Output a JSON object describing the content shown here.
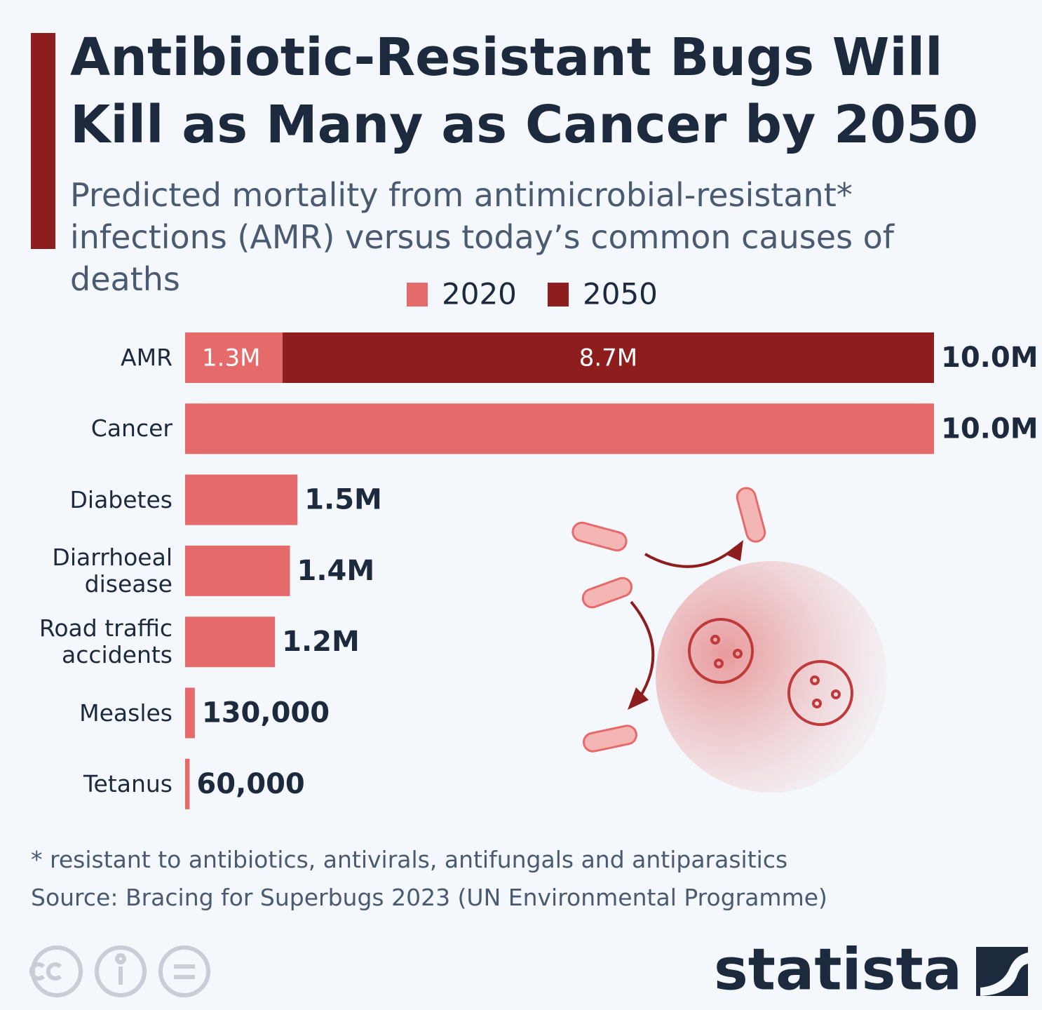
{
  "chart_data": {
    "type": "stacked_bar_horizontal",
    "title": "Antibiotic-Resistant Bugs Will Kill as Many as Cancer by 2050",
    "subtitle": "Predicted mortality from antimicrobial-resistant* infections (AMR) versus today’s common causes of deaths",
    "categories": [
      "AMR",
      "Cancer",
      "Diabetes",
      "Diarrhoeal disease",
      "Road traffic accidents",
      "Measles",
      "Tetanus"
    ],
    "series": [
      {
        "name": "2020",
        "color": "#e56b6a",
        "values": [
          1300000,
          10000000,
          1500000,
          1400000,
          1200000,
          130000,
          60000
        ],
        "value_labels": [
          "1.3M",
          null,
          null,
          null,
          null,
          null,
          null
        ]
      },
      {
        "name": "2050",
        "color": "#8e1e1e",
        "values": [
          8700000,
          null,
          null,
          null,
          null,
          null,
          null
        ],
        "value_labels": [
          "8.7M",
          null,
          null,
          null,
          null,
          null,
          null
        ]
      }
    ],
    "totals": [
      10000000,
      10000000,
      1500000,
      1400000,
      1200000,
      130000,
      60000
    ],
    "total_labels": [
      "10.0M",
      "10.0M",
      "1.5M",
      "1.4M",
      "1.2M",
      "130,000",
      "60,000"
    ],
    "xlim": [
      0,
      10000000
    ],
    "legend": "top",
    "footnote": "* resistant to antibiotics, antivirals, antifungals and antiparasitics",
    "source": "Source: Bracing for Superbugs 2023 (UN Environmental Programme)",
    "brand": "statista"
  }
}
